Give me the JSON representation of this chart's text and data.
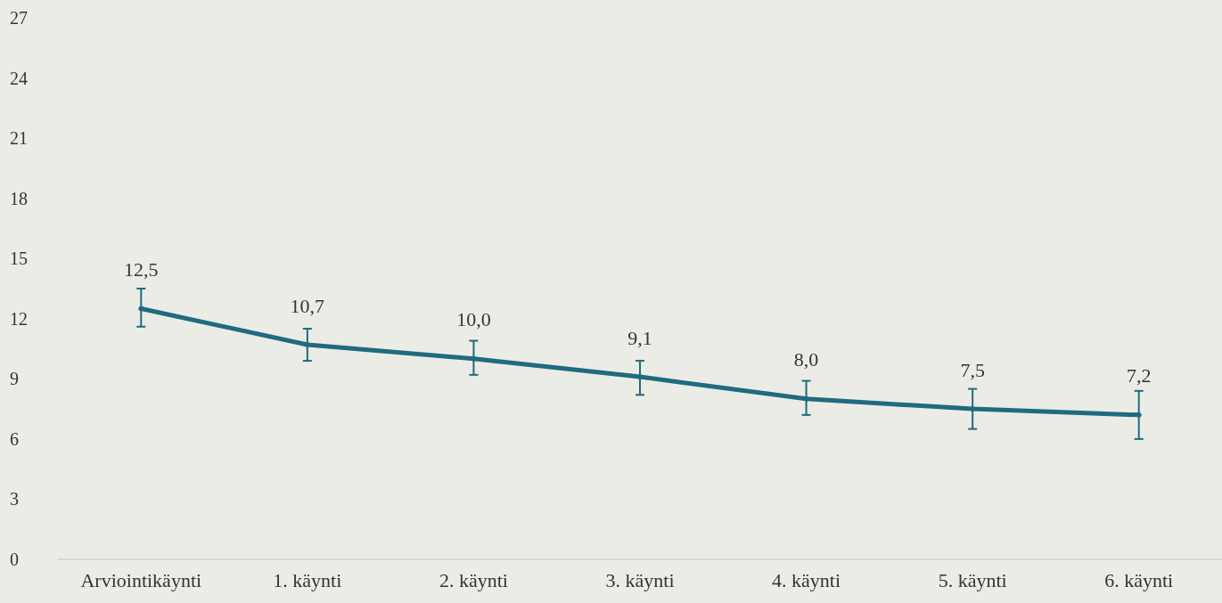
{
  "chart_data": {
    "type": "line",
    "categories": [
      "Arviointikäynti",
      "1. käynti",
      "2. käynti",
      "3. käynti",
      "4. käynti",
      "5. käynti",
      "6. käynti"
    ],
    "series": [
      {
        "color": "#1f6b80",
        "values": [
          12.5,
          10.7,
          10.0,
          9.1,
          8.0,
          7.5,
          7.2
        ],
        "value_labels": [
          "12,5",
          "10,7",
          "10,0",
          "9,1",
          "8,0",
          "7,5",
          "7,2"
        ],
        "errors": [
          [
            11.6,
            13.5
          ],
          [
            9.9,
            11.5
          ],
          [
            9.2,
            10.9
          ],
          [
            8.2,
            9.9
          ],
          [
            7.2,
            8.9
          ],
          [
            6.5,
            8.5
          ],
          [
            6.0,
            8.4
          ]
        ]
      }
    ],
    "ylim": [
      0,
      27
    ],
    "yticks": [
      0,
      3,
      6,
      9,
      12,
      15,
      18,
      21,
      24,
      27
    ],
    "grid": false,
    "marker": "circle",
    "line_style": "solid"
  }
}
